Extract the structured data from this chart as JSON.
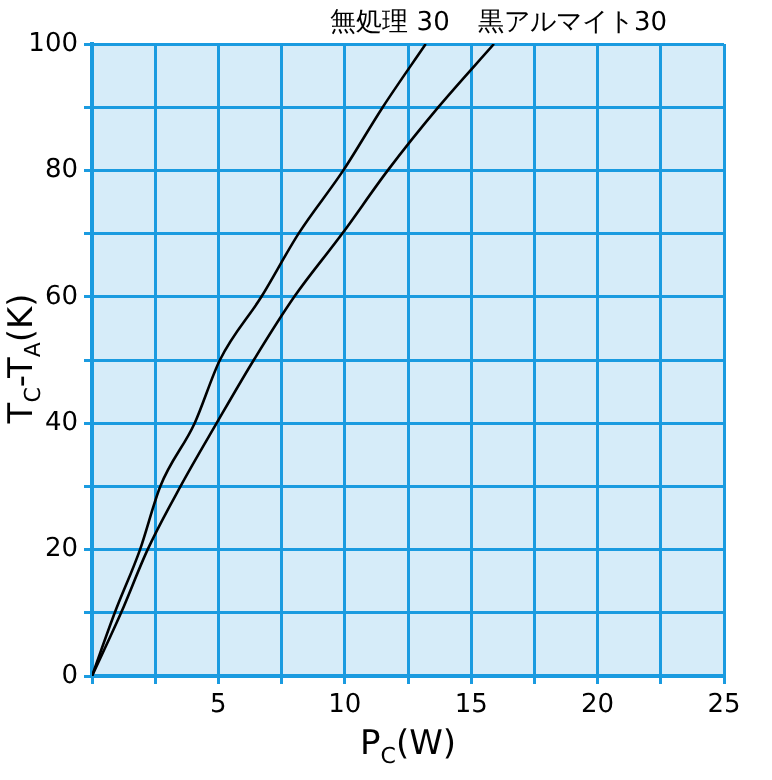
{
  "chart_data": {
    "type": "line",
    "xlabel": "P$_{C}$(W)",
    "ylabel": "T$_{C}$-T$_{A}$(K)",
    "series": [
      {
        "name": "無処理 30",
        "color": "#000000",
        "x": [
          0,
          0.9,
          1.9,
          2.7,
          4.06,
          5.06,
          6.7,
          8.17,
          9.94,
          11.5,
          13.2
        ],
        "values": [
          0,
          10,
          20,
          30,
          40,
          50,
          60,
          70,
          80,
          90,
          100
        ]
      },
      {
        "name": "黒アルマイト30",
        "color": "#000000",
        "x": [
          0,
          1.15,
          2.2,
          3.5,
          4.93,
          6.4,
          8.0,
          9.9,
          11.7,
          13.7,
          15.9
        ],
        "values": [
          0,
          10,
          20,
          30,
          40,
          50,
          60,
          70,
          80,
          90,
          100
        ]
      }
    ],
    "xlim": [
      0,
      25
    ],
    "ylim": [
      0,
      100
    ],
    "xticks": [
      {
        "value": 0,
        "label": null
      },
      {
        "value": 2.5,
        "label": null
      },
      5,
      {
        "value": 7.5,
        "label": null
      },
      10,
      {
        "value": 12.5,
        "label": null
      },
      15,
      {
        "value": 17.5,
        "label": null
      },
      20,
      {
        "value": 22.5,
        "label": null
      },
      25
    ],
    "yticks": [
      0,
      {
        "value": 10,
        "label": null
      },
      20,
      {
        "value": 30,
        "label": null
      },
      40,
      {
        "value": 50,
        "label": null
      },
      60,
      {
        "value": 70,
        "label": null
      },
      80,
      {
        "value": 90,
        "label": null
      },
      100
    ],
    "grid": true,
    "legend": false,
    "marker": "none",
    "line_style": "solid"
  }
}
